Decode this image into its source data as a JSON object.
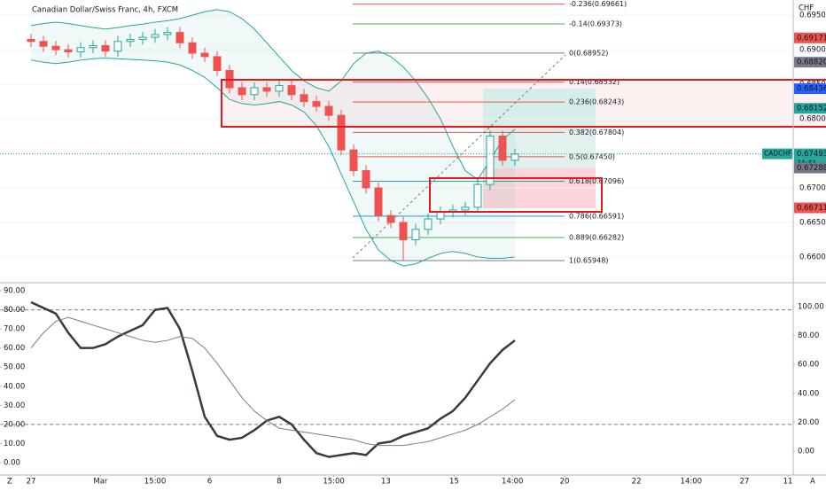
{
  "chart_data": [
    {
      "type": "candlestick",
      "title": "Canadian Dollar/Swiss Franc, 4h, FXCM",
      "y_label": "CHF",
      "up_color": "#26a69a",
      "down_color": "#ef5350",
      "open": [
        0.6915,
        0.6912,
        0.6905,
        0.69,
        0.6897,
        0.6903,
        0.6906,
        0.6898,
        0.6912,
        0.6915,
        0.6918,
        0.6922,
        0.6925,
        0.691,
        0.6895,
        0.689,
        0.687,
        0.6845,
        0.6835,
        0.6845,
        0.684,
        0.6848,
        0.6835,
        0.6825,
        0.6818,
        0.6805,
        0.6755,
        0.6725,
        0.67,
        0.666,
        0.665,
        0.6625,
        0.664,
        0.6655,
        0.6665,
        0.6668,
        0.6672,
        0.6705,
        0.6775,
        0.674
      ],
      "high": [
        0.6923,
        0.692,
        0.6913,
        0.6908,
        0.6911,
        0.6914,
        0.6914,
        0.692,
        0.6923,
        0.6926,
        0.693,
        0.6933,
        0.6933,
        0.6918,
        0.6903,
        0.6898,
        0.6878,
        0.6853,
        0.6853,
        0.6853,
        0.6856,
        0.6856,
        0.6843,
        0.6833,
        0.6826,
        0.6813,
        0.6763,
        0.6733,
        0.6708,
        0.6668,
        0.6658,
        0.6648,
        0.6663,
        0.6673,
        0.6676,
        0.668,
        0.6713,
        0.6783,
        0.6783,
        0.6757
      ],
      "low": [
        0.6904,
        0.6897,
        0.6892,
        0.6889,
        0.6889,
        0.6895,
        0.689,
        0.689,
        0.6904,
        0.6907,
        0.691,
        0.6914,
        0.6902,
        0.6887,
        0.6882,
        0.6862,
        0.6837,
        0.6827,
        0.6827,
        0.6832,
        0.6832,
        0.6827,
        0.6817,
        0.681,
        0.6797,
        0.6747,
        0.6717,
        0.6692,
        0.6652,
        0.6642,
        0.65948,
        0.6617,
        0.6632,
        0.6647,
        0.6657,
        0.666,
        0.6664,
        0.6697,
        0.6732,
        0.6732
      ],
      "close": [
        0.6912,
        0.6905,
        0.69,
        0.6897,
        0.6903,
        0.6906,
        0.6898,
        0.6912,
        0.6915,
        0.6918,
        0.6922,
        0.6925,
        0.691,
        0.6895,
        0.689,
        0.687,
        0.6845,
        0.6835,
        0.6845,
        0.684,
        0.6848,
        0.6835,
        0.6825,
        0.6818,
        0.6805,
        0.6755,
        0.6725,
        0.67,
        0.666,
        0.665,
        0.6625,
        0.664,
        0.6655,
        0.6665,
        0.6668,
        0.6672,
        0.6705,
        0.6775,
        0.674,
        0.6749
      ],
      "overlays": [
        {
          "color": "#26a69a",
          "values": [
            0.6935,
            0.6938,
            0.694,
            0.6938,
            0.6935,
            0.6932,
            0.693,
            0.6932,
            0.6935,
            0.6937,
            0.694,
            0.6942,
            0.6945,
            0.695,
            0.6955,
            0.6958,
            0.6955,
            0.6945,
            0.693,
            0.691,
            0.689,
            0.687,
            0.6855,
            0.6845,
            0.684,
            0.6855,
            0.688,
            0.6895,
            0.6898,
            0.689,
            0.6875,
            0.6855,
            0.683,
            0.68,
            0.676,
            0.6725,
            0.6712,
            0.674,
            0.677,
            0.6785
          ]
        },
        {
          "color": "#26a69a",
          "values": [
            0.6885,
            0.6882,
            0.688,
            0.6882,
            0.6885,
            0.6887,
            0.6888,
            0.6887,
            0.6886,
            0.6885,
            0.6884,
            0.6882,
            0.6878,
            0.687,
            0.686,
            0.6845,
            0.6828,
            0.6822,
            0.682,
            0.6822,
            0.6825,
            0.682,
            0.681,
            0.679,
            0.676,
            0.672,
            0.668,
            0.664,
            0.661,
            0.6595,
            0.6587,
            0.659,
            0.6598,
            0.6605,
            0.6608,
            0.6605,
            0.66,
            0.6598,
            0.6598,
            0.66
          ]
        }
      ],
      "ylim": [
        0.6564,
        0.6972
      ],
      "yticks": [
        {
          "value": 0.66,
          "label": "0.66000"
        },
        {
          "value": 0.665,
          "label": "0.66500"
        },
        {
          "value": 0.67,
          "label": "0.67000"
        },
        {
          "value": 0.675,
          "label": "0.67500"
        },
        {
          "value": 0.68,
          "label": "0.68000"
        },
        {
          "value": 0.685,
          "label": "0.68500"
        },
        {
          "value": 0.69,
          "label": "0.69000"
        },
        {
          "value": 0.695,
          "label": "0.69500"
        }
      ],
      "xticks": [
        {
          "value": 0,
          "label": "27"
        },
        {
          "value": 5.6,
          "label": "Mar"
        },
        {
          "value": 10,
          "label": "15:00"
        },
        {
          "value": 14.4,
          "label": "6"
        },
        {
          "value": 20,
          "label": "8"
        },
        {
          "value": 24.4,
          "label": "15:00"
        },
        {
          "value": 28.6,
          "label": "13"
        },
        {
          "value": 34.1,
          "label": "15"
        },
        {
          "value": 38.8,
          "label": "14:00"
        },
        {
          "value": 43,
          "label": "20"
        },
        {
          "value": 48.8,
          "label": "22"
        },
        {
          "value": 53.2,
          "label": "14:00"
        },
        {
          "value": 57.5,
          "label": "27"
        },
        {
          "value": 61,
          "label": "11"
        }
      ],
      "fib_levels": [
        {
          "value": 0.69661,
          "label": "-0.236(0.69661)",
          "color": "#ef5350"
        },
        {
          "value": 0.69373,
          "label": "-0.14(0.69373)",
          "color": "#4caf50"
        },
        {
          "value": 0.68952,
          "label": "0(0.68952)",
          "color": "#787b86"
        },
        {
          "value": 0.68532,
          "label": "0.14(0.68532)",
          "color": "#ef5350"
        },
        {
          "value": 0.68243,
          "label": "0.236(0.68243)",
          "color": "#ef5350"
        },
        {
          "value": 0.67804,
          "label": "0.382(0.67804)",
          "color": "#ef5350"
        },
        {
          "value": 0.6745,
          "label": "0.5(0.67450)",
          "color": "#ef5350"
        },
        {
          "value": 0.67096,
          "label": "0.618(0.67096)",
          "color": "#26a69a"
        },
        {
          "value": 0.66591,
          "label": "0.786(0.66591)",
          "color": "#2196f3"
        },
        {
          "value": 0.66282,
          "label": "0.889(0.66282)",
          "color": "#4caf50"
        },
        {
          "value": 0.65948,
          "label": "1(0.65948)",
          "color": "#787b86"
        }
      ],
      "price_labels": [
        {
          "value": 0.69171,
          "label": "0.69171",
          "color": "#ef5350"
        },
        {
          "value": 0.6882,
          "label": "0.68820",
          "color": "#787b86"
        },
        {
          "value": 0.68436,
          "label": "0.68436",
          "color": "#2962ff"
        },
        {
          "value": 0.68152,
          "label": "0.68152",
          "color": "#26a69a"
        },
        {
          "value": 0.67493,
          "label": "0.67493",
          "color": "#26a69a"
        },
        {
          "value": 0.67288,
          "label": "0.67288",
          "color": "#787b86"
        },
        {
          "value": 0.66711,
          "label": "0.66711",
          "color": "#ef5350"
        }
      ],
      "symbol_label": "CADCHF",
      "countdown": "34:43"
    },
    {
      "type": "line",
      "series": [
        {
          "color": "#363a45",
          "width": 2.5,
          "values": [
            84,
            81,
            78,
            68,
            60,
            60,
            62,
            66,
            69,
            72,
            80,
            81,
            70,
            48,
            24,
            14,
            12,
            13,
            17,
            22,
            24,
            20,
            12,
            5,
            3,
            4,
            5,
            4,
            10,
            11,
            14,
            16,
            18,
            23,
            27,
            34,
            43,
            52,
            59,
            64
          ]
        },
        {
          "color": "#787b86",
          "width": 1,
          "values": [
            60,
            68,
            74,
            76,
            74,
            72,
            70,
            68,
            66,
            64,
            63,
            64,
            66,
            65,
            60,
            52,
            43,
            34,
            27,
            22,
            18,
            17,
            16,
            15,
            14,
            13,
            12,
            10,
            9,
            9,
            9,
            10,
            11,
            13,
            15,
            17,
            20,
            24,
            28,
            33
          ]
        }
      ],
      "hlines": [
        80,
        20
      ],
      "ylim": [
        -6.5,
        92.8
      ],
      "yticks": [
        {
          "value": 0,
          "label": "0.00"
        },
        {
          "value": 10,
          "label": "10.00"
        },
        {
          "value": 20,
          "label": "20.00"
        },
        {
          "value": 30,
          "label": "30.00"
        },
        {
          "value": 40,
          "label": "40.00"
        },
        {
          "value": 50,
          "label": "50.00"
        },
        {
          "value": 60,
          "label": "60.00"
        },
        {
          "value": 70,
          "label": "70.00"
        },
        {
          "value": 80,
          "label": "80.00"
        },
        {
          "value": 90,
          "label": "90.00"
        }
      ],
      "y2lim": [
        -16.6,
        114.7
      ],
      "y2ticks": [
        {
          "value": 0,
          "label": "0.00"
        },
        {
          "value": 20,
          "label": "20.00"
        },
        {
          "value": 40,
          "label": "40.00"
        },
        {
          "value": 60,
          "label": "60.00"
        },
        {
          "value": 80,
          "label": "80.00"
        },
        {
          "value": 100,
          "label": "100.00"
        }
      ]
    }
  ],
  "ui": {
    "z_button": "Z",
    "auto_button": "A"
  }
}
